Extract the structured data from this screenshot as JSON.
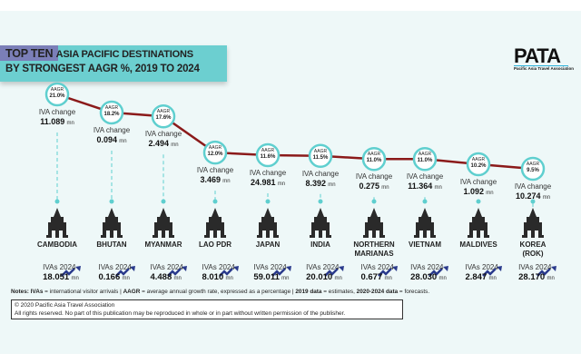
{
  "title": {
    "highlight": "TOP TEN",
    "line1_rest": "ASIA PACIFIC DESTINATIONS",
    "line2": "BY STRONGEST AAGR %, 2019 TO 2024"
  },
  "logo": {
    "name": "PATA",
    "tagline": "Pacific Asia Travel Association"
  },
  "labels": {
    "aagr": "AAGR",
    "iva_change": "IVA change",
    "ivas_2024": "IVAs 2024",
    "unit": "mn"
  },
  "colors": {
    "line": "#8b1a1a",
    "circle": "#5fcfcf",
    "banner": "#6ccfd0",
    "highlight": "#7b7fb8",
    "arrow": "#2a3a8c"
  },
  "chart_data": {
    "type": "line",
    "title": "TOP TEN ASIA PACIFIC DESTINATIONS BY STRONGEST AAGR %, 2019 TO 2024",
    "categories": [
      "CAMBODIA",
      "BHUTAN",
      "MYANMAR",
      "LAO PDR",
      "JAPAN",
      "INDIA",
      "NORTHERN MARIANAS",
      "VIETNAM",
      "MALDIVES",
      "KOREA (ROK)"
    ],
    "series": [
      {
        "name": "AAGR",
        "unit": "%",
        "values": [
          21.0,
          18.2,
          17.6,
          12.0,
          11.6,
          11.5,
          11.0,
          11.0,
          10.2,
          9.5
        ],
        "labels": [
          "21.0%",
          "18.2%",
          "17.6%",
          "12.0%",
          "11.6%",
          "11.5%",
          "11.0%",
          "11.0%",
          "10.2%",
          "9.5%"
        ]
      },
      {
        "name": "IVA change",
        "unit": "mn",
        "values": [
          "11.089",
          "0.094",
          "2.494",
          "3.469",
          "24.981",
          "8.392",
          "0.275",
          "11.364",
          "1.092",
          "10.274"
        ]
      },
      {
        "name": "IVAs 2024",
        "unit": "mn",
        "values": [
          "18.051",
          "0.166",
          "4.488",
          "8.010",
          "59.011",
          "20.010",
          "0.677",
          "28.030",
          "2.847",
          "28.170"
        ]
      }
    ]
  },
  "notes": {
    "p1": "Notes: IVAs",
    "p2": " = international visitor arrivals | ",
    "p3": "AAGR",
    "p4": " = average annual growth rate, expressed as a percentage | ",
    "p5": "2019 data",
    "p6": " = estimates, ",
    "p7": "2020-2024 data",
    "p8": " = forecasts."
  },
  "copyright": {
    "line1": "© 2020 Pacific Asia Travel Association",
    "line2": "All rights reserved. No part of this publication may be reproduced in whole or in part without written permission of the publisher."
  }
}
